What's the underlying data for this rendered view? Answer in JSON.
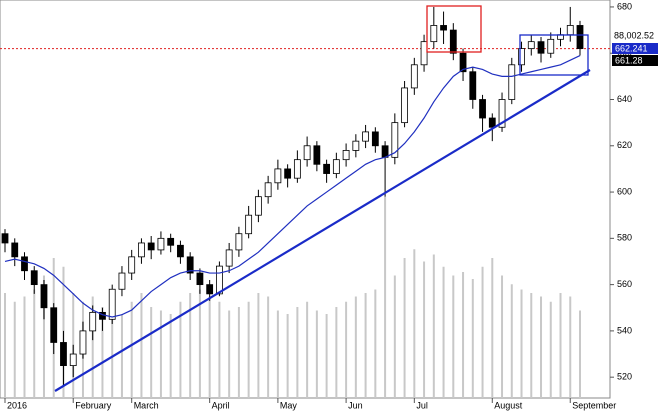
{
  "chart_data": {
    "type": "candlestick",
    "categories": [
      "2016",
      null,
      null,
      null,
      null,
      null,
      null,
      "February",
      null,
      null,
      null,
      null,
      null,
      "March",
      null,
      null,
      null,
      null,
      null,
      null,
      null,
      "April",
      null,
      null,
      null,
      null,
      null,
      null,
      "May",
      null,
      null,
      null,
      null,
      null,
      null,
      "Jun",
      null,
      null,
      null,
      null,
      null,
      null,
      "Jul",
      null,
      null,
      null,
      null,
      null,
      null,
      null,
      "August",
      null,
      null,
      null,
      null,
      null,
      null,
      null,
      "September",
      null
    ],
    "open": [
      582,
      578,
      572,
      566,
      560,
      550,
      535,
      525,
      530,
      540,
      548,
      545,
      558,
      565,
      572,
      578,
      575,
      580,
      577,
      572,
      565,
      560,
      556,
      568,
      575,
      582,
      590,
      598,
      604,
      610,
      606,
      614,
      620,
      612,
      608,
      614,
      618,
      622,
      626,
      620,
      615,
      630,
      645,
      655,
      665,
      672,
      670,
      660,
      652,
      640,
      632,
      628,
      640,
      655,
      662,
      665,
      660,
      666,
      668,
      672
    ],
    "high": [
      584,
      580,
      574,
      568,
      562,
      552,
      540,
      534,
      544,
      551,
      550,
      560,
      568,
      575,
      580,
      581,
      583,
      582,
      579,
      574,
      567,
      562,
      570,
      578,
      585,
      594,
      601,
      607,
      614,
      612,
      618,
      624,
      622,
      614,
      617,
      621,
      625,
      629,
      628,
      622,
      634,
      648,
      658,
      668,
      680,
      678,
      673,
      662,
      654,
      642,
      634,
      643,
      658,
      665,
      668,
      667,
      669,
      671,
      680,
      674
    ],
    "low": [
      574,
      568,
      562,
      556,
      545,
      530,
      516,
      520,
      528,
      536,
      540,
      543,
      555,
      562,
      569,
      571,
      573,
      574,
      569,
      562,
      556,
      553,
      555,
      565,
      572,
      580,
      587,
      595,
      601,
      602,
      604,
      611,
      609,
      604,
      606,
      611,
      615,
      619,
      617,
      598,
      612,
      628,
      642,
      652,
      662,
      664,
      657,
      648,
      636,
      626,
      622,
      626,
      638,
      652,
      659,
      656,
      658,
      663,
      665,
      659
    ],
    "close": [
      578,
      572,
      566,
      560,
      550,
      535,
      525,
      530,
      540,
      548,
      545,
      558,
      565,
      572,
      578,
      575,
      580,
      577,
      572,
      565,
      560,
      556,
      568,
      575,
      582,
      590,
      598,
      604,
      610,
      606,
      614,
      620,
      612,
      608,
      614,
      618,
      622,
      626,
      620,
      615,
      630,
      645,
      655,
      665,
      672,
      670,
      660,
      652,
      640,
      632,
      628,
      640,
      655,
      662,
      665,
      660,
      666,
      668,
      672,
      662
    ],
    "moving_average": [
      570,
      571,
      570,
      569,
      567,
      564,
      560,
      556,
      552,
      549,
      547,
      546,
      547,
      549,
      553,
      557,
      560,
      563,
      565,
      566,
      566,
      565,
      565,
      566,
      568,
      571,
      574,
      578,
      582,
      586,
      590,
      594,
      597,
      600,
      603,
      606,
      609,
      612,
      614,
      615,
      617,
      621,
      626,
      632,
      639,
      645,
      650,
      653,
      654,
      653,
      651,
      650,
      650,
      651,
      652,
      653,
      654,
      655,
      657,
      659
    ],
    "volume": [
      60,
      55,
      58,
      62,
      70,
      80,
      75,
      60,
      55,
      58,
      52,
      50,
      48,
      55,
      60,
      52,
      50,
      48,
      55,
      60,
      62,
      58,
      55,
      50,
      52,
      55,
      60,
      58,
      50,
      48,
      52,
      55,
      50,
      48,
      52,
      55,
      58,
      60,
      62,
      115,
      70,
      80,
      85,
      78,
      82,
      75,
      70,
      72,
      68,
      75,
      80,
      70,
      65,
      62,
      60,
      58,
      55,
      60,
      58,
      50
    ],
    "ma_color": "#2030c0",
    "up_color": "#ffffff",
    "down_color": "#000000",
    "volume_color": "#c8c8c8",
    "reference_line": {
      "value": 662,
      "color": "#e02020"
    },
    "price_labels": [
      "88,002.52",
      "662.241",
      "661.28"
    ],
    "ylim": [
      511,
      683
    ],
    "yticks": [
      520,
      540,
      560,
      580,
      600,
      620,
      640,
      660,
      680
    ]
  }
}
